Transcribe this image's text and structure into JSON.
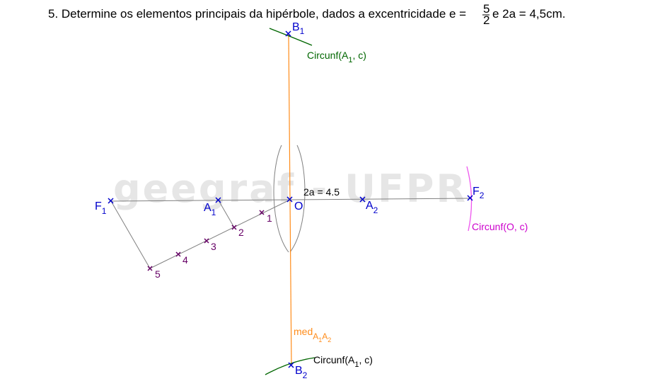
{
  "problem": {
    "text": "5. Determine os elementos principais da hipérbole, dados a excentricidade e =",
    "frac_num": "5",
    "frac_den": "2",
    "text_after": "e 2a = 4,5cm."
  },
  "watermark": "geegraf - UFPR",
  "labels": {
    "B1": {
      "main": "B",
      "sub": "1"
    },
    "B2": {
      "main": "B",
      "sub": "2"
    },
    "F1": {
      "main": "F",
      "sub": "1"
    },
    "F2": {
      "main": "F",
      "sub": "2"
    },
    "A1": {
      "main": "A",
      "sub": "1"
    },
    "A2": {
      "main": "A",
      "sub": "2"
    },
    "O": "O",
    "div1": "1",
    "div2": "2",
    "div3": "3",
    "div4": "4",
    "div5": "5",
    "dist": "2a = 4.5",
    "circ_top": {
      "pre": "Circunf(A",
      "sub": "1",
      "post": ", c)"
    },
    "circ_bottom": {
      "pre": "Circunf(A",
      "sub": "1",
      "post": ", c)"
    },
    "circ_right": "Circunf(O, c)",
    "med": {
      "main": "med",
      "sub1": "A",
      "s1": "1",
      "sub2": "A",
      "s2": "2"
    }
  },
  "colors": {
    "points": "#0000cc",
    "divisions": "#660066",
    "circ_green": "#006600",
    "circ_magenta": "#cc00cc",
    "mediatrix": "#ff8c1a",
    "construction": "#808080"
  }
}
